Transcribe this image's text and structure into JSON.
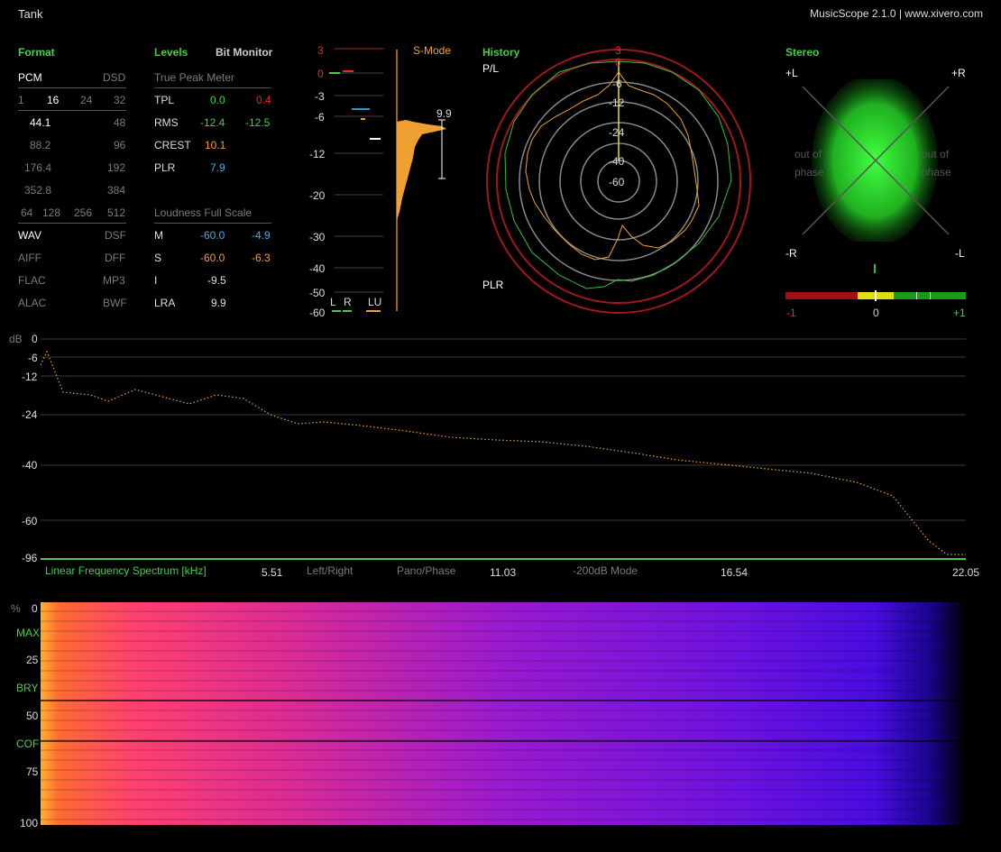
{
  "window": {
    "title": "Tank",
    "app": "MusicScope 2.1.0 | www.xivero.com"
  },
  "format": {
    "header": "Format",
    "pcm": "PCM",
    "dsd": "DSD",
    "bits": [
      "1",
      "16",
      "24",
      "32"
    ],
    "rates_left": [
      "44.1",
      "88.2",
      "176.4",
      "352.8"
    ],
    "rates_right": [
      "48",
      "96",
      "192",
      "384"
    ],
    "dsd_rates": [
      "64",
      "128",
      "256",
      "512"
    ],
    "formats_left": [
      "WAV",
      "AIFF",
      "FLAC",
      "ALAC"
    ],
    "formats_right": [
      "DSF",
      "DFF",
      "MP3",
      "BWF"
    ]
  },
  "levels": {
    "header": "Levels",
    "bit_monitor": "Bit Monitor",
    "true_peak_title": "True Peak Meter",
    "rows": [
      {
        "label": "TPL",
        "l": "0.0",
        "r": "0.4"
      },
      {
        "label": "RMS",
        "l": "-12.4",
        "r": "-12.5"
      },
      {
        "label": "CREST",
        "l": "10.1",
        "r": ""
      },
      {
        "label": "PLR",
        "l": "7.9",
        "r": ""
      }
    ],
    "loudness_title": "Loudness Full Scale",
    "loud_rows": [
      {
        "label": "M",
        "l": "-60.0",
        "r": "-4.9"
      },
      {
        "label": "S",
        "l": "-60.0",
        "r": "-6.3"
      },
      {
        "label": "I",
        "l": "-9.5",
        "r": ""
      },
      {
        "label": "LRA",
        "l": "9.9",
        "r": ""
      }
    ]
  },
  "meter": {
    "smode": "S-Mode",
    "scale": [
      "3",
      "0",
      "-3",
      "-6",
      "-12",
      "-20",
      "-30",
      "-40",
      "-50",
      "-60"
    ],
    "lra_value": "9.9",
    "channels": [
      "L",
      "R",
      "LU"
    ]
  },
  "history": {
    "header": "History",
    "pl": "P/L",
    "plr": "PLR",
    "rings": [
      "3",
      "0",
      "-6",
      "-12",
      "-24",
      "-40",
      "-60"
    ]
  },
  "stereo": {
    "header": "Stereo",
    "corners": [
      "+L",
      "+R",
      "-R",
      "-L"
    ],
    "out_of_phase": [
      "out of",
      "phase"
    ],
    "corr_labels": [
      "-1",
      "0",
      "+1"
    ]
  },
  "spectrum": {
    "db_label": "dB",
    "db_ticks": [
      "0",
      "-6",
      "-12",
      "-24",
      "-40",
      "-60",
      "-96"
    ],
    "title": "Linear Frequency Spectrum [kHz]",
    "freq_ticks": [
      "5.51",
      "11.03",
      "16.54",
      "22.05"
    ],
    "modes": [
      "Left/Right",
      "Pano/Phase",
      "-200dB Mode"
    ]
  },
  "spectrogram": {
    "pct_label": "%",
    "ticks": [
      "0",
      "25",
      "50",
      "75",
      "100"
    ],
    "markers": [
      "MAX",
      "BRY",
      "COF"
    ]
  },
  "colors": {
    "accent": "#4dc94d",
    "orange": "#f0a030",
    "red": "#e03020",
    "blue": "#4aa8e0"
  }
}
